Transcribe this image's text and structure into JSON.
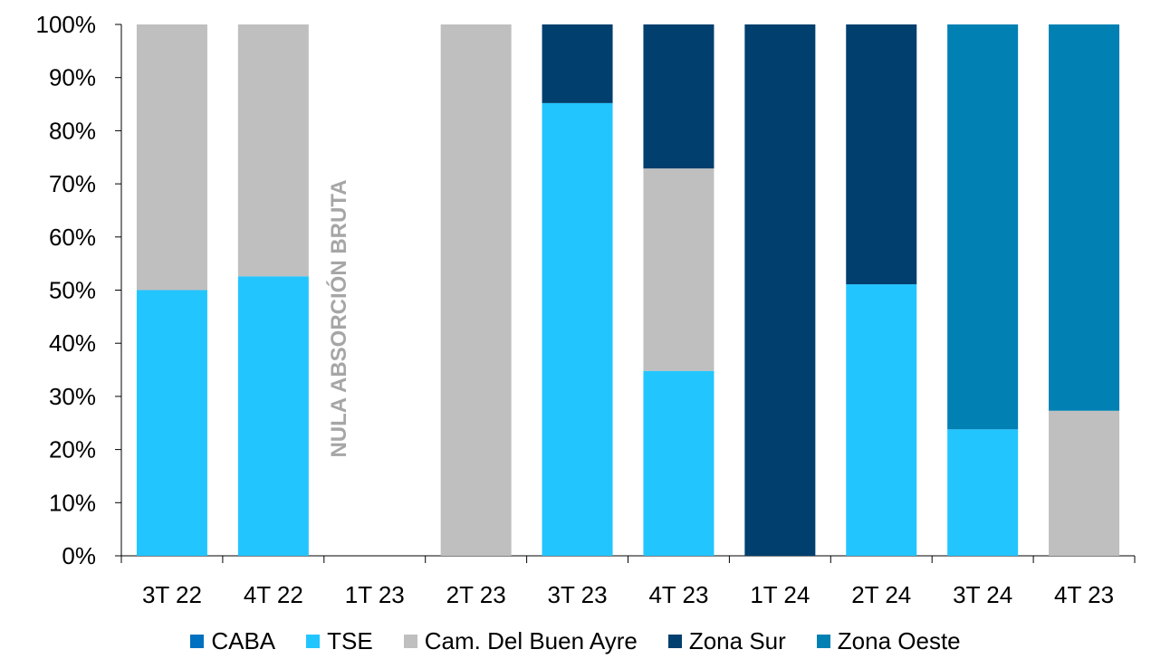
{
  "chart_data": {
    "type": "bar",
    "stacked": true,
    "categories": [
      "3T 22",
      "4T 22",
      "1T 23",
      "2T 23",
      "3T 23",
      "4T 23",
      "1T 24",
      "2T 24",
      "3T 24",
      "4T 23"
    ],
    "series": [
      {
        "name": "CABA",
        "color": "#0070c0",
        "values": [
          0,
          0,
          0,
          0,
          0,
          0,
          0,
          0,
          0,
          0
        ]
      },
      {
        "name": "TSE",
        "color": "#23c5ff",
        "values": [
          50,
          52.6,
          0,
          0,
          85.2,
          34.8,
          0,
          51.1,
          23.8,
          0
        ]
      },
      {
        "name": "Cam. Del Buen Ayre",
        "color": "#bfbfbf",
        "values": [
          50,
          47.4,
          0,
          100,
          0,
          38.1,
          0,
          0,
          0,
          27.3
        ]
      },
      {
        "name": "Zona Sur",
        "color": "#003f6e",
        "values": [
          0,
          0,
          0,
          0,
          14.8,
          27.1,
          100,
          48.9,
          0,
          0
        ]
      },
      {
        "name": "Zona Oeste",
        "color": "#0080b3",
        "values": [
          0,
          0,
          0,
          0,
          0,
          0,
          0,
          0,
          76.2,
          72.7
        ]
      }
    ],
    "y_ticks": [
      "0%",
      "10%",
      "20%",
      "30%",
      "40%",
      "50%",
      "60%",
      "70%",
      "80%",
      "90%",
      "100%"
    ],
    "ylim": [
      0,
      100
    ],
    "annotation": {
      "text": "NULA ABSORCIÓN BRUTA",
      "category": "1T 23"
    },
    "grid": false,
    "legend_position": "bottom"
  }
}
